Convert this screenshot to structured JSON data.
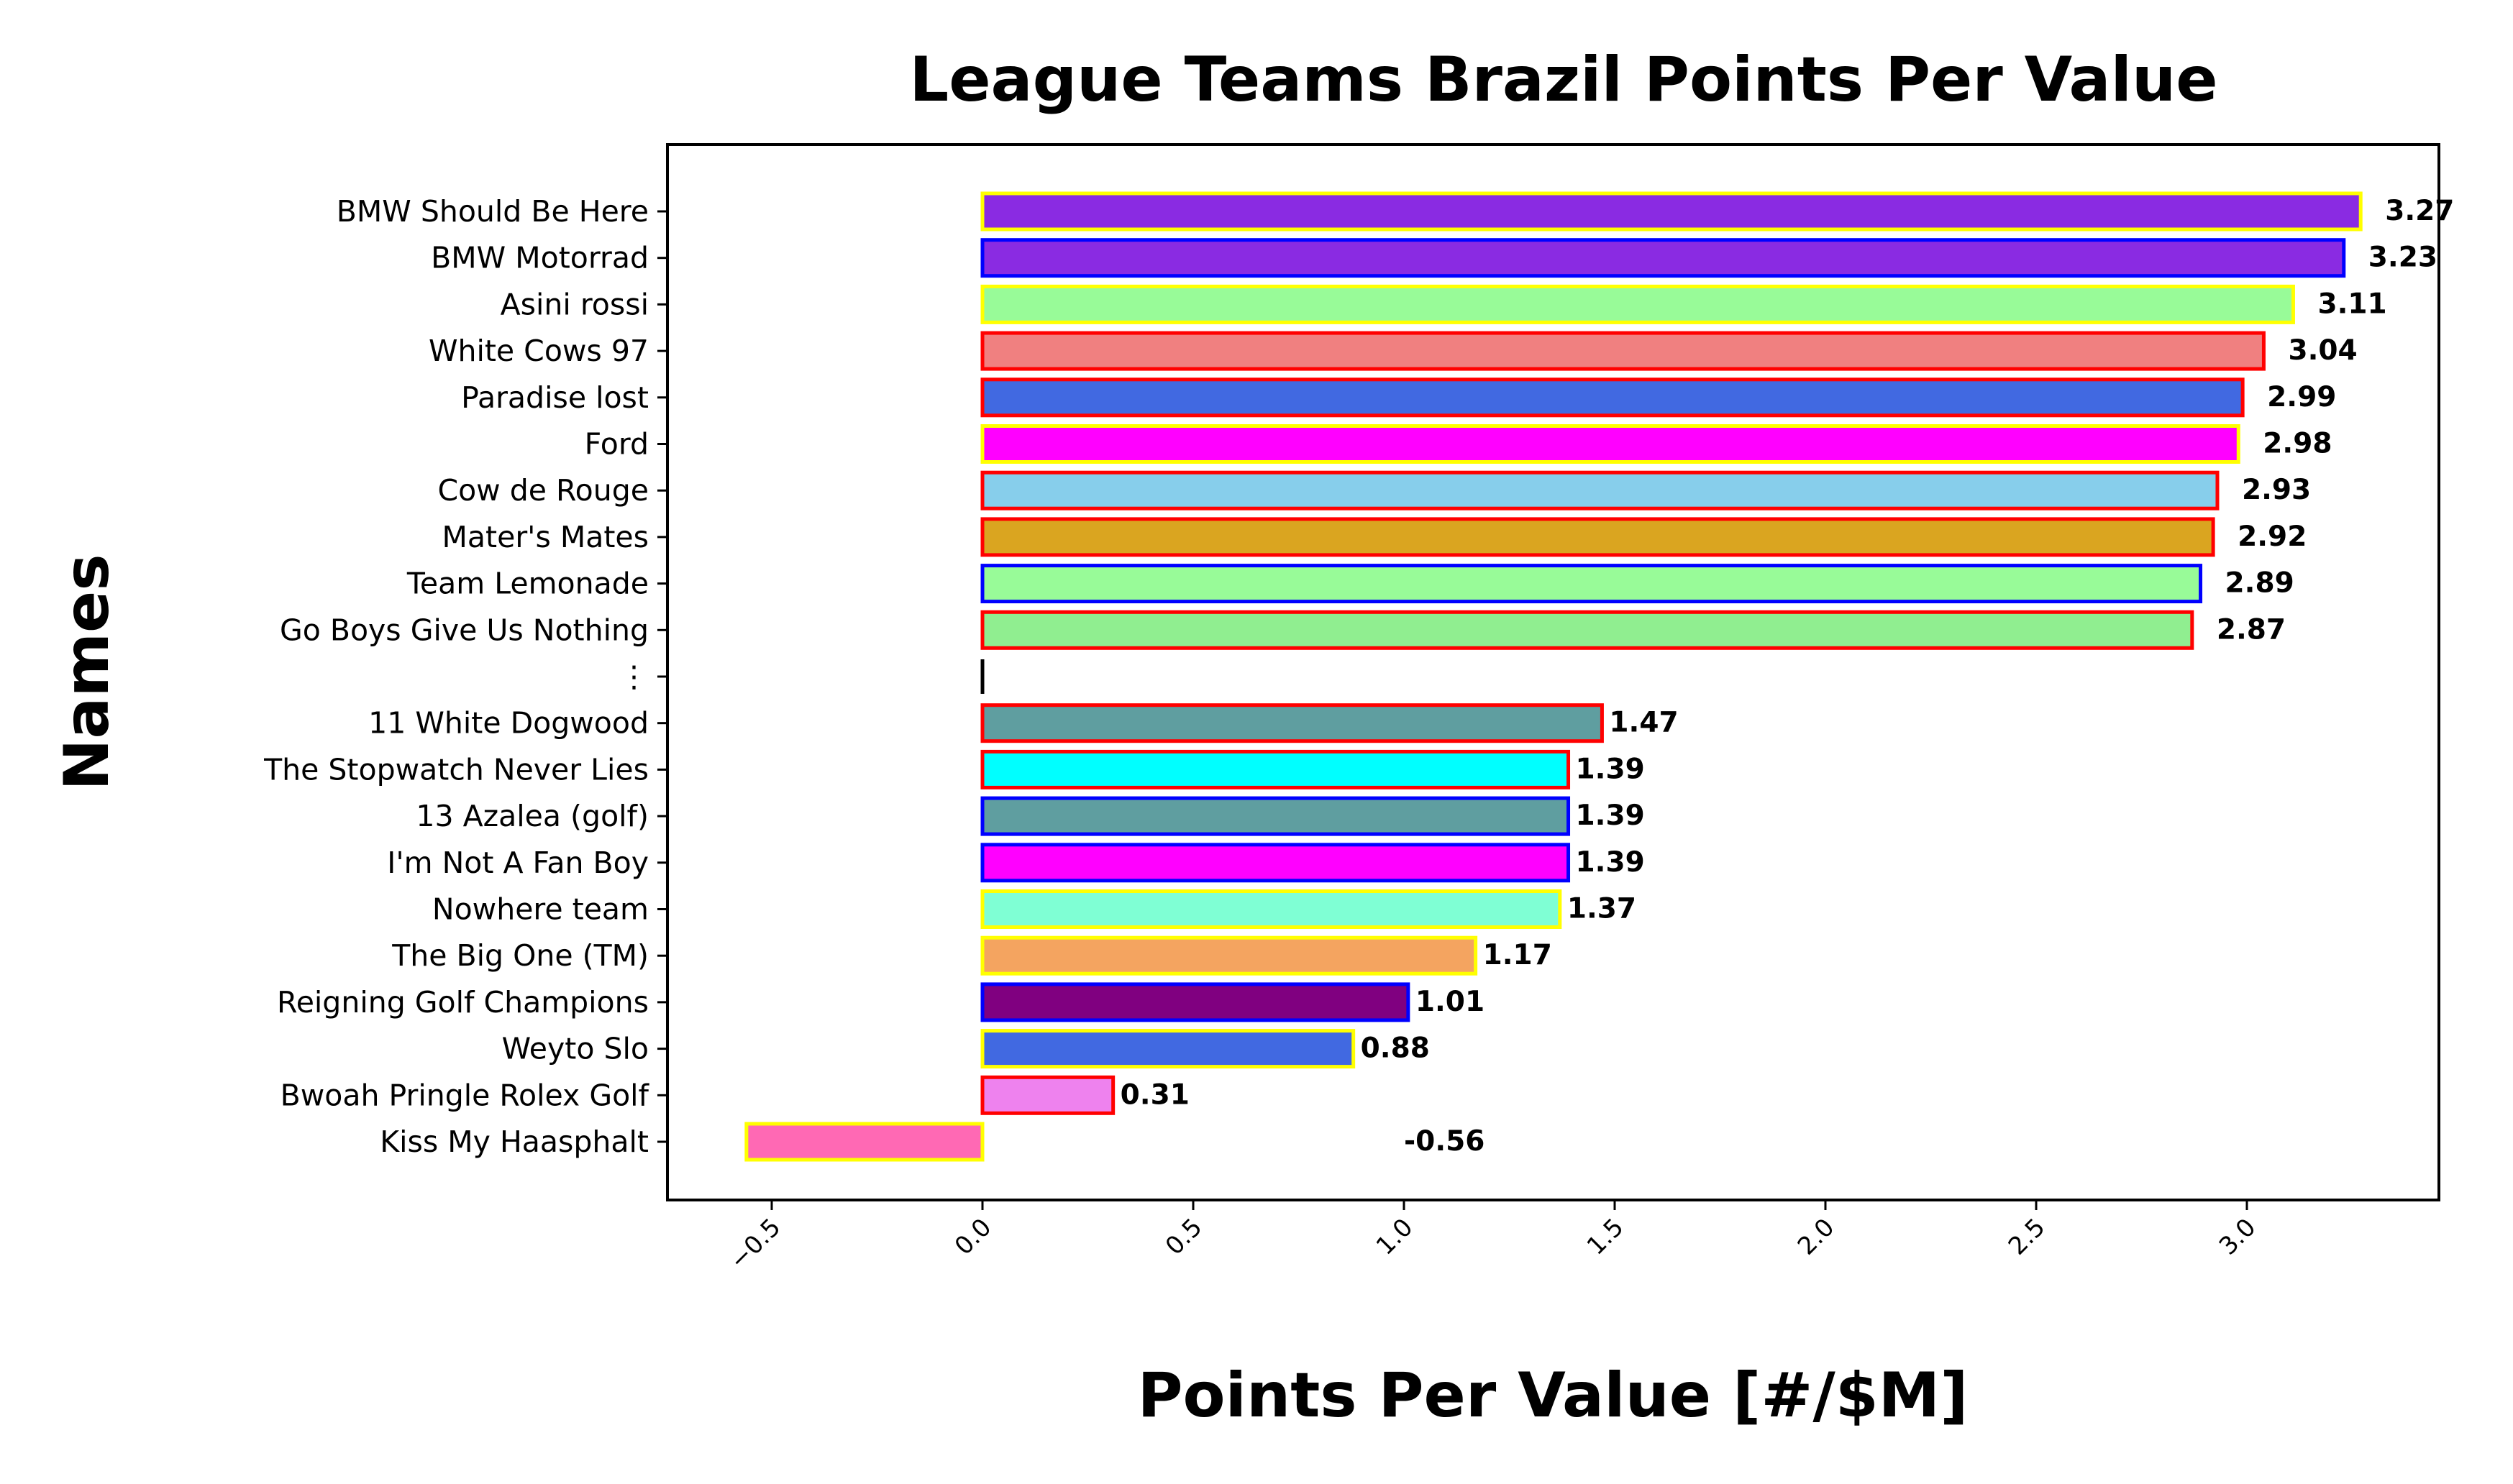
{
  "chart_data": {
    "type": "bar",
    "orientation": "horizontal",
    "title": "League Teams Brazil Points Per Value",
    "xlabel": "Points Per Value [#/$M]",
    "ylabel": "Names",
    "xlim": [
      -0.75,
      3.47
    ],
    "xticks": [
      -0.5,
      0.0,
      0.5,
      1.0,
      1.5,
      2.0,
      2.5,
      3.0
    ],
    "xtick_labels": [
      "−0.5",
      "0.0",
      "0.5",
      "1.0",
      "1.5",
      "2.0",
      "2.5",
      "3.0"
    ],
    "grid": false,
    "legend": "none",
    "bars": [
      {
        "category": "BMW Should Be Here",
        "value": 3.27,
        "label": "3.27",
        "fill": "#8a2be2",
        "edge": "#ffff00"
      },
      {
        "category": "BMW Motorrad",
        "value": 3.23,
        "label": "3.23",
        "fill": "#8a2be2",
        "edge": "#0000ff"
      },
      {
        "category": "Asini rossi",
        "value": 3.11,
        "label": "3.11",
        "fill": "#98fb98",
        "edge": "#ffff00"
      },
      {
        "category": "White Cows 97",
        "value": 3.04,
        "label": "3.04",
        "fill": "#f08080",
        "edge": "#ff0000"
      },
      {
        "category": "Paradise lost",
        "value": 2.99,
        "label": "2.99",
        "fill": "#4169e1",
        "edge": "#ff0000"
      },
      {
        "category": "Ford",
        "value": 2.98,
        "label": "2.98",
        "fill": "#ff00ff",
        "edge": "#ffff00"
      },
      {
        "category": "Cow de Rouge",
        "value": 2.93,
        "label": "2.93",
        "fill": "#87ceeb",
        "edge": "#ff0000"
      },
      {
        "category": "Mater's Mates",
        "value": 2.92,
        "label": "2.92",
        "fill": "#daa520",
        "edge": "#ff0000"
      },
      {
        "category": "Team Lemonade",
        "value": 2.89,
        "label": "2.89",
        "fill": "#98fb98",
        "edge": "#0000ff"
      },
      {
        "category": "Go Boys Give Us Nothing",
        "value": 2.87,
        "label": "2.87",
        "fill": "#90ee90",
        "edge": "#ff0000"
      },
      {
        "category": "⋮",
        "value": 0,
        "label": "",
        "fill": "#000000",
        "edge": "#000000",
        "separator": true
      },
      {
        "category": "11 White Dogwood",
        "value": 1.47,
        "label": "1.47",
        "fill": "#5f9ea0",
        "edge": "#ff0000"
      },
      {
        "category": "The Stopwatch Never Lies",
        "value": 1.39,
        "label": "1.39",
        "fill": "#00ffff",
        "edge": "#ff0000"
      },
      {
        "category": "13 Azalea (golf)",
        "value": 1.39,
        "label": "1.39",
        "fill": "#5f9ea0",
        "edge": "#0000ff"
      },
      {
        "category": "I'm Not A Fan Boy",
        "value": 1.39,
        "label": "1.39",
        "fill": "#ff00ff",
        "edge": "#0000ff"
      },
      {
        "category": "Nowhere team",
        "value": 1.37,
        "label": "1.37",
        "fill": "#7fffd4",
        "edge": "#ffff00"
      },
      {
        "category": "The Big One (TM)",
        "value": 1.17,
        "label": "1.17",
        "fill": "#f4a460",
        "edge": "#ffff00"
      },
      {
        "category": "Reigning Golf Champions",
        "value": 1.01,
        "label": "1.01",
        "fill": "#800080",
        "edge": "#0000ff"
      },
      {
        "category": "Weyto Slo",
        "value": 0.88,
        "label": "0.88",
        "fill": "#4169e1",
        "edge": "#ffff00"
      },
      {
        "category": "Bwoah Pringle Rolex Golf",
        "value": 0.31,
        "label": "0.31",
        "fill": "#ee82ee",
        "edge": "#ff0000"
      },
      {
        "category": "Kiss My Haasphalt",
        "value": -0.56,
        "label": "-0.56",
        "fill": "#ff69b4",
        "edge": "#ffff00",
        "label_at": 1.0
      }
    ]
  }
}
